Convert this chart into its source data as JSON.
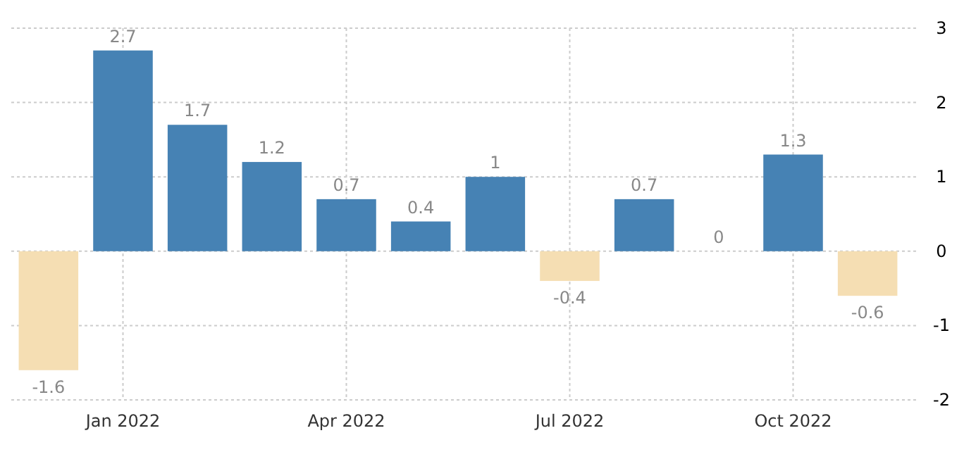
{
  "chart_data": {
    "type": "bar",
    "categories": [
      null,
      "Jan 2022",
      null,
      null,
      "Apr 2022",
      null,
      null,
      "Jul 2022",
      null,
      null,
      "Oct 2022",
      null
    ],
    "values": [
      -1.6,
      2.7,
      1.7,
      1.2,
      0.7,
      0.4,
      1,
      -0.4,
      0.7,
      0,
      1.3,
      -0.6
    ],
    "colors": [
      "#f5deb3",
      "#4682b4",
      "#4682b4",
      "#4682b4",
      "#4682b4",
      "#4682b4",
      "#4682b4",
      "#f5deb3",
      "#4682b4",
      "#4682b4",
      "#4682b4",
      "#f5deb3"
    ],
    "ylim": [
      -2,
      3
    ],
    "yticks": [
      -2,
      -1,
      0,
      1,
      2,
      3
    ],
    "grid": true,
    "data_labels": true
  }
}
